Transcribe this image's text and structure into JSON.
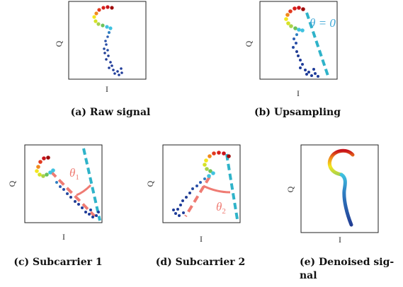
{
  "panels": [
    {
      "id": "a",
      "axis_x": "I",
      "axis_y": "Q",
      "caption": "(a) Raw signal"
    },
    {
      "id": "b",
      "axis_x": "I",
      "axis_y": "Q",
      "caption": "(b) Upsampling",
      "annotation": "θ = 0"
    },
    {
      "id": "c",
      "axis_x": "I",
      "axis_y": "Q",
      "caption": "(c) Subcarrier 1",
      "annotation_sym": "θ",
      "annotation_sub": "1"
    },
    {
      "id": "d",
      "axis_x": "I",
      "axis_y": "Q",
      "caption": "(d) Subcarrier 2",
      "annotation_sym": "θ",
      "annotation_sub": "2"
    },
    {
      "id": "e",
      "axis_x": "I",
      "axis_y": "Q",
      "caption_line1": "(e) Denoised sig-",
      "caption_line2": "nal"
    }
  ],
  "colors": {
    "dashed_line": "#2fb3c9",
    "angle_line": "#ef7b73",
    "annotation_b": "#3da7d6",
    "annotation_theta": "#ef7b73",
    "trace_low": "#1f3c99",
    "trace_high": "#9e0b0b"
  }
}
